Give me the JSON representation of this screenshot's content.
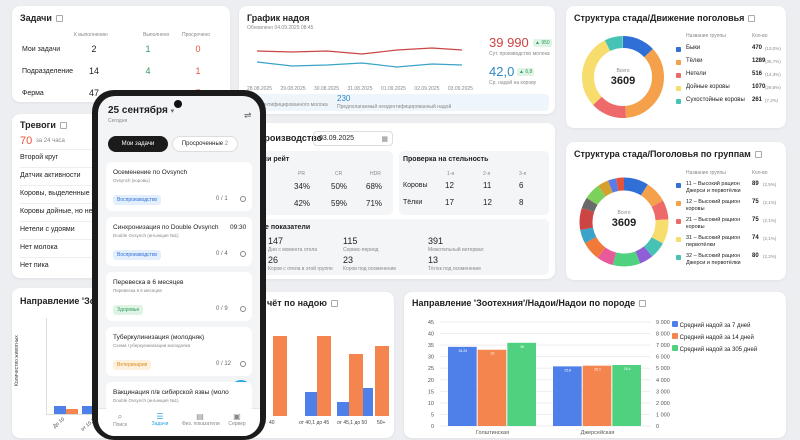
{
  "tasks": {
    "title": "Задачи",
    "h1": "К выполнению",
    "h2": "Выполнено",
    "h3": "Просрочено",
    "rows": [
      {
        "label": "Мои задачи",
        "a": "2",
        "b": "1",
        "c": "0"
      },
      {
        "label": "Подразделение",
        "a": "14",
        "b": "4",
        "c": "1"
      },
      {
        "label": "Ферма",
        "a": "47",
        "b": "",
        "c": "7"
      }
    ]
  },
  "yield": {
    "title": "График надоя",
    "updated": "Обновлено 04.09.2025 08:45",
    "big1": "39 990",
    "badge1": "▲ 950",
    "cap1": "Сут. производство молока",
    "big2": "42,0",
    "badge2": "▲ 6,8",
    "cap2": "Ср. надой на корову",
    "dates": [
      "28.08.2025",
      "29.08.2025",
      "30.08.2025",
      "31.08.2025",
      "01.09.2025",
      "02.09.2025",
      "03.09.2025"
    ],
    "bottom_num": "230",
    "bottom_cap1": "Не идентифицированного молока",
    "bottom_cap2": "Предполагаемый неидентифицированный надой"
  },
  "struct1": {
    "title": "Структура стада/Движение поголовья",
    "total_label": "Всего",
    "total": "3609",
    "hg": "Название группы",
    "hc": "Кол-во",
    "items": [
      {
        "name": "Быки",
        "count": "470",
        "pct": "(13,0%)",
        "color": "#2f6fd6"
      },
      {
        "name": "Тёлки",
        "count": "1289",
        "pct": "(35,7%)",
        "color": "#f5a04a"
      },
      {
        "name": "Нетели",
        "count": "516",
        "pct": "(14,3%)",
        "color": "#ee6a6a"
      },
      {
        "name": "Дойные коровы",
        "count": "1070",
        "pct": "(29,6%)",
        "color": "#f6dd6e"
      },
      {
        "name": "Сухостойные коровы",
        "count": "261",
        "pct": "(7,2%)",
        "color": "#47c3b5"
      }
    ]
  },
  "alerts": {
    "title": "Тревоги",
    "count": "70",
    "sub": "за 24 часа",
    "items": [
      "Второй круг",
      "Датчик активности",
      "Коровы, выделенные в",
      "Коровы дойные, но не",
      "Нетели с удоями",
      "Нет молока",
      "Нет пика"
    ]
  },
  "repro": {
    "title": "производство",
    "date": "03.09.2025",
    "rate_title": "нси рейт",
    "h": [
      "PR",
      "CR",
      "HDR"
    ],
    "r1": [
      "34%",
      "50%",
      "68%"
    ],
    "r2": [
      "42%",
      "59%",
      "71%"
    ],
    "check_title": "Проверка на стельность",
    "ch": [
      "1-я",
      "2-я",
      "3-я"
    ],
    "c1": {
      "label": "Коровы",
      "v": [
        "12",
        "11",
        "6"
      ]
    },
    "c2": {
      "label": "Тёлки",
      "v": [
        "17",
        "12",
        "8"
      ]
    },
    "indicators": "е показатели",
    "i1": "147",
    "i1c": "Дни с момента отела",
    "i2": "115",
    "i2c": "Сервис-период",
    "i3": "391",
    "i3c": "Межотельный интервал",
    "i4": "26",
    "i4c": "Коров с отела в этой группе",
    "i5": "23",
    "i5c": "Коров под осеменение",
    "i6": "13",
    "i6c": "Тёлок под осеменение"
  },
  "struct2": {
    "title": "Структура стада/Поголовья по группам",
    "total_label": "Всего",
    "total": "3609",
    "hg": "Название группы",
    "hc": "Кол-во",
    "items": [
      {
        "name": "11 – Высокий рацион Джерси и первотёлки",
        "count": "89",
        "pct": "(2,5%)",
        "color": "#2f6fd6"
      },
      {
        "name": "12 – Высокий рацион коровы",
        "count": "75",
        "pct": "(2,1%)",
        "color": "#f5a04a"
      },
      {
        "name": "21 – Высокий рацион коровы",
        "count": "75",
        "pct": "(2,1%)",
        "color": "#ee6a6a"
      },
      {
        "name": "31 – Высокий рацион первотёлки",
        "count": "74",
        "pct": "(2,1%)",
        "color": "#f6dd6e"
      },
      {
        "name": "32 – Высокий рацион Джерси и первотёлки",
        "count": "80",
        "pct": "(2,2%)",
        "color": "#47c3b5"
      }
    ]
  },
  "dir": {
    "title": "Направление 'Зоотех",
    "ylabel": "Количество животных",
    "x": [
      "До 10",
      "от 10,1 до"
    ]
  },
  "milkrep": {
    "title": "чёт по надою",
    "x": [
      "40",
      "от 40,1 до 45",
      "от 45,1 до 50",
      "50+"
    ]
  },
  "breed": {
    "title": "Направление 'Зоотехния'/Надои/Надои по породе",
    "left_ticks": [
      "45",
      "40",
      "35",
      "30",
      "25",
      "20",
      "15",
      "10",
      "5",
      "0"
    ],
    "right_ticks": [
      "9 000",
      "8 000",
      "7 000",
      "6 000",
      "5 000",
      "4 000",
      "3 000",
      "2 000",
      "1 000",
      "0"
    ],
    "legend": [
      "Средний надой за 7 дней",
      "Средний надой за 14 дней",
      "Средний надой за 305 дней"
    ],
    "colors": [
      "#4f7fe8",
      "#f5854f",
      "#4fd17f"
    ]
  },
  "chart_data": {
    "type": "bar",
    "title": "Направление 'Зоотехния'/Надои/Надои по породе",
    "categories": [
      "Голштинская",
      "Джерсейская"
    ],
    "series": [
      {
        "name": "Средний надой за 7 дней",
        "values": [
          34.25,
          25.8
        ]
      },
      {
        "name": "Средний надой за 14 дней",
        "values": [
          33.0,
          26.1
        ]
      },
      {
        "name": "Средний надой за 305 дней",
        "values": [
          36.0,
          26.4
        ]
      }
    ],
    "ylim": [
      0,
      45
    ]
  },
  "phone": {
    "date": "25 сентября",
    "sub": "Сегодня",
    "tab1": "Мои задачи",
    "tab2": "Просроченные",
    "tab2_count": "2",
    "tasks": [
      {
        "title": "Осеменение по Ovsynch",
        "sub": "Ovsynch (коровы)",
        "tag": "Воспроизводство",
        "progress": "0 / 1",
        "time": ""
      },
      {
        "title": "Синхронизация по Double Ovsynch",
        "sub": "Double Ovsynch (инъекция №1)",
        "tag": "Воспроизводство",
        "progress": "0 / 4",
        "time": "09:30"
      },
      {
        "title": "Перевеска в 6 месяцев",
        "sub": "Перевеска в 6 месяцев",
        "tag": "Здоровье",
        "progress": "0 / 9",
        "time": ""
      },
      {
        "title": "Туберкулинизация (молодняк)",
        "sub": "Схема туберкулинизации молодняка",
        "tag": "Ветеринария",
        "progress": "0 / 12",
        "time": ""
      },
      {
        "title": "Вакцинация п/в сибирской язвы (моло",
        "sub": "Double Ovsynch (инъекция №1)",
        "tag": "",
        "progress": "",
        "time": ""
      }
    ],
    "nav": [
      "Поиск",
      "Задачи",
      "Физ. показатели",
      "Сервер"
    ]
  }
}
